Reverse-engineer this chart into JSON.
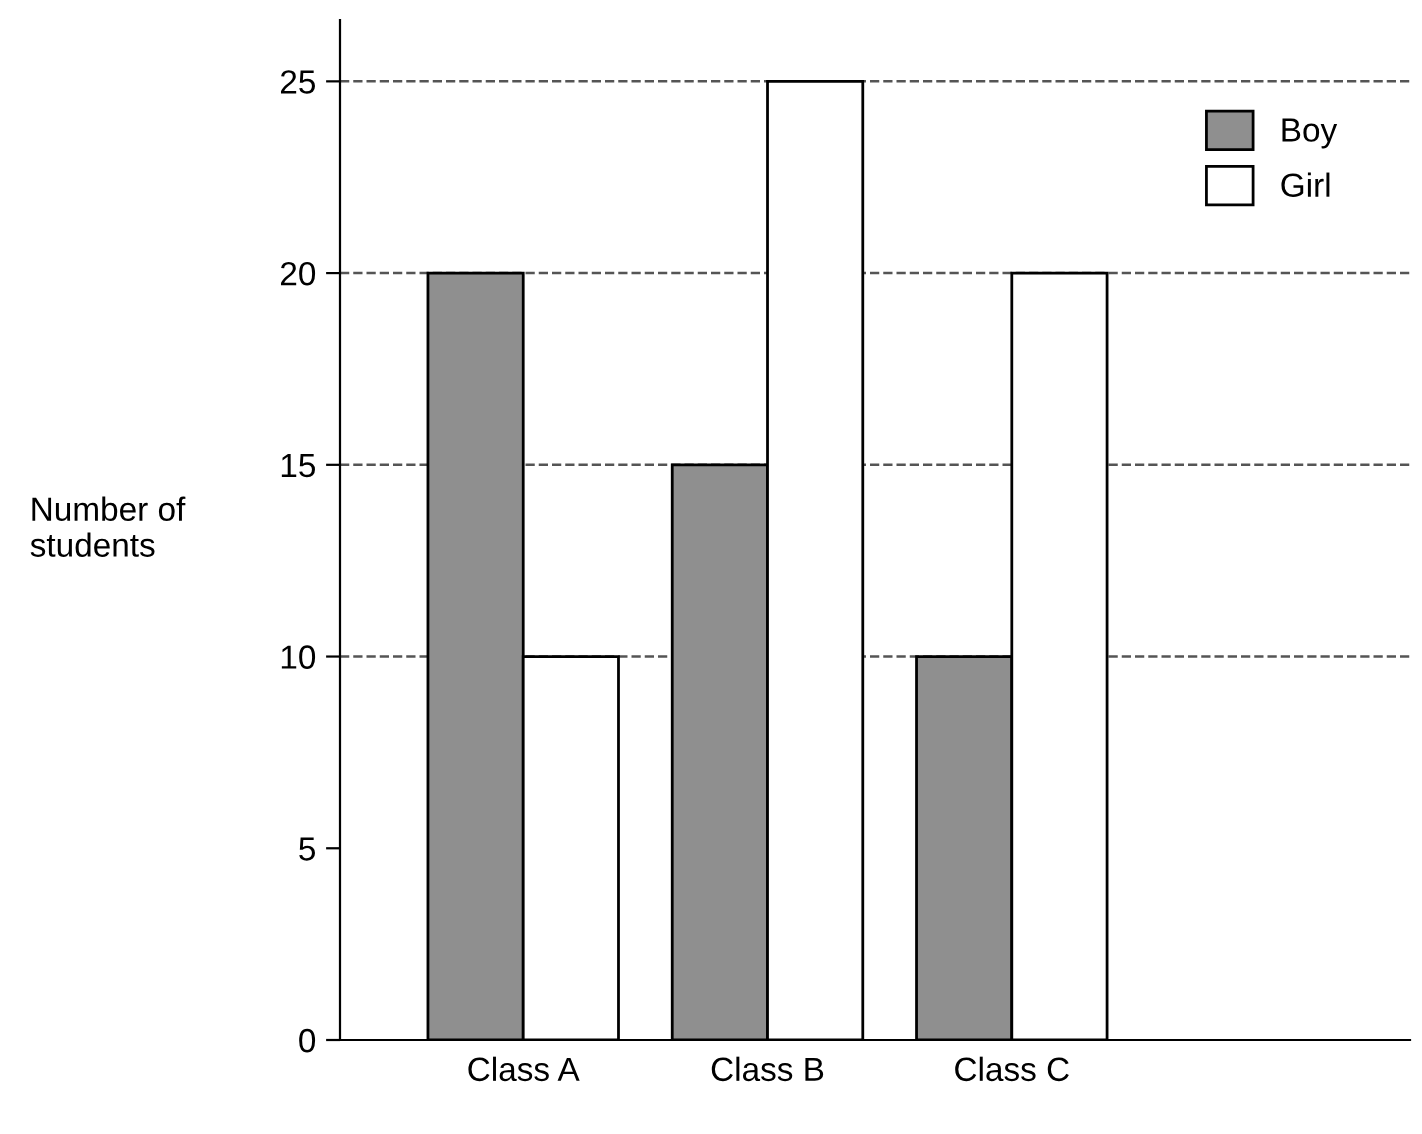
{
  "chart_data": {
    "type": "bar",
    "ylabel": "Number of\nstudents",
    "categories": [
      "Class A",
      "Class B",
      "Class C"
    ],
    "series": [
      {
        "name": "Boy",
        "color": "#8f8f8f",
        "values": [
          20,
          15,
          10
        ]
      },
      {
        "name": "Girl",
        "color": "#ffffff",
        "values": [
          10,
          25,
          20
        ]
      }
    ],
    "ylim": [
      0,
      26.6
    ],
    "yticks": [
      0,
      5,
      10,
      15,
      20,
      25
    ],
    "grid": false,
    "legend": "top right",
    "ref_lines": [
      {
        "axis": "y",
        "value": 10,
        "color": "#555555",
        "line_style": "dashed"
      },
      {
        "axis": "y",
        "value": 15,
        "color": "#555555",
        "line_style": "dashed"
      },
      {
        "axis": "y",
        "value": 20,
        "color": "#555555",
        "line_style": "dashed"
      },
      {
        "axis": "y",
        "value": 25,
        "color": "#555555",
        "line_style": "dashed"
      }
    ]
  }
}
